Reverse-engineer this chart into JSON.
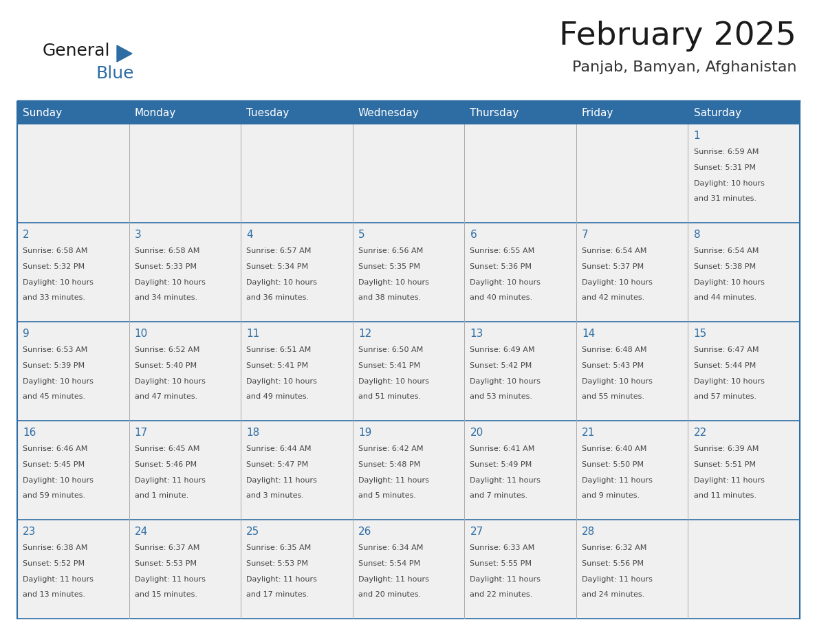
{
  "title": "February 2025",
  "subtitle": "Panjab, Bamyan, Afghanistan",
  "header_bg": "#2E6DA4",
  "header_text_color": "#FFFFFF",
  "cell_bg": "#F0F0F0",
  "day_number_color": "#2E6DA4",
  "text_color": "#444444",
  "border_color": "#2E6DA4",
  "line_color": "#AAAAAA",
  "days_of_week": [
    "Sunday",
    "Monday",
    "Tuesday",
    "Wednesday",
    "Thursday",
    "Friday",
    "Saturday"
  ],
  "title_fontsize": 34,
  "subtitle_fontsize": 16,
  "header_day_fontsize": 11,
  "day_num_fontsize": 11,
  "info_fontsize": 8,
  "weeks": [
    [
      {
        "day": "",
        "info": ""
      },
      {
        "day": "",
        "info": ""
      },
      {
        "day": "",
        "info": ""
      },
      {
        "day": "",
        "info": ""
      },
      {
        "day": "",
        "info": ""
      },
      {
        "day": "",
        "info": ""
      },
      {
        "day": "1",
        "info": "Sunrise: 6:59 AM\nSunset: 5:31 PM\nDaylight: 10 hours\nand 31 minutes."
      }
    ],
    [
      {
        "day": "2",
        "info": "Sunrise: 6:58 AM\nSunset: 5:32 PM\nDaylight: 10 hours\nand 33 minutes."
      },
      {
        "day": "3",
        "info": "Sunrise: 6:58 AM\nSunset: 5:33 PM\nDaylight: 10 hours\nand 34 minutes."
      },
      {
        "day": "4",
        "info": "Sunrise: 6:57 AM\nSunset: 5:34 PM\nDaylight: 10 hours\nand 36 minutes."
      },
      {
        "day": "5",
        "info": "Sunrise: 6:56 AM\nSunset: 5:35 PM\nDaylight: 10 hours\nand 38 minutes."
      },
      {
        "day": "6",
        "info": "Sunrise: 6:55 AM\nSunset: 5:36 PM\nDaylight: 10 hours\nand 40 minutes."
      },
      {
        "day": "7",
        "info": "Sunrise: 6:54 AM\nSunset: 5:37 PM\nDaylight: 10 hours\nand 42 minutes."
      },
      {
        "day": "8",
        "info": "Sunrise: 6:54 AM\nSunset: 5:38 PM\nDaylight: 10 hours\nand 44 minutes."
      }
    ],
    [
      {
        "day": "9",
        "info": "Sunrise: 6:53 AM\nSunset: 5:39 PM\nDaylight: 10 hours\nand 45 minutes."
      },
      {
        "day": "10",
        "info": "Sunrise: 6:52 AM\nSunset: 5:40 PM\nDaylight: 10 hours\nand 47 minutes."
      },
      {
        "day": "11",
        "info": "Sunrise: 6:51 AM\nSunset: 5:41 PM\nDaylight: 10 hours\nand 49 minutes."
      },
      {
        "day": "12",
        "info": "Sunrise: 6:50 AM\nSunset: 5:41 PM\nDaylight: 10 hours\nand 51 minutes."
      },
      {
        "day": "13",
        "info": "Sunrise: 6:49 AM\nSunset: 5:42 PM\nDaylight: 10 hours\nand 53 minutes."
      },
      {
        "day": "14",
        "info": "Sunrise: 6:48 AM\nSunset: 5:43 PM\nDaylight: 10 hours\nand 55 minutes."
      },
      {
        "day": "15",
        "info": "Sunrise: 6:47 AM\nSunset: 5:44 PM\nDaylight: 10 hours\nand 57 minutes."
      }
    ],
    [
      {
        "day": "16",
        "info": "Sunrise: 6:46 AM\nSunset: 5:45 PM\nDaylight: 10 hours\nand 59 minutes."
      },
      {
        "day": "17",
        "info": "Sunrise: 6:45 AM\nSunset: 5:46 PM\nDaylight: 11 hours\nand 1 minute."
      },
      {
        "day": "18",
        "info": "Sunrise: 6:44 AM\nSunset: 5:47 PM\nDaylight: 11 hours\nand 3 minutes."
      },
      {
        "day": "19",
        "info": "Sunrise: 6:42 AM\nSunset: 5:48 PM\nDaylight: 11 hours\nand 5 minutes."
      },
      {
        "day": "20",
        "info": "Sunrise: 6:41 AM\nSunset: 5:49 PM\nDaylight: 11 hours\nand 7 minutes."
      },
      {
        "day": "21",
        "info": "Sunrise: 6:40 AM\nSunset: 5:50 PM\nDaylight: 11 hours\nand 9 minutes."
      },
      {
        "day": "22",
        "info": "Sunrise: 6:39 AM\nSunset: 5:51 PM\nDaylight: 11 hours\nand 11 minutes."
      }
    ],
    [
      {
        "day": "23",
        "info": "Sunrise: 6:38 AM\nSunset: 5:52 PM\nDaylight: 11 hours\nand 13 minutes."
      },
      {
        "day": "24",
        "info": "Sunrise: 6:37 AM\nSunset: 5:53 PM\nDaylight: 11 hours\nand 15 minutes."
      },
      {
        "day": "25",
        "info": "Sunrise: 6:35 AM\nSunset: 5:53 PM\nDaylight: 11 hours\nand 17 minutes."
      },
      {
        "day": "26",
        "info": "Sunrise: 6:34 AM\nSunset: 5:54 PM\nDaylight: 11 hours\nand 20 minutes."
      },
      {
        "day": "27",
        "info": "Sunrise: 6:33 AM\nSunset: 5:55 PM\nDaylight: 11 hours\nand 22 minutes."
      },
      {
        "day": "28",
        "info": "Sunrise: 6:32 AM\nSunset: 5:56 PM\nDaylight: 11 hours\nand 24 minutes."
      },
      {
        "day": "",
        "info": ""
      }
    ]
  ]
}
